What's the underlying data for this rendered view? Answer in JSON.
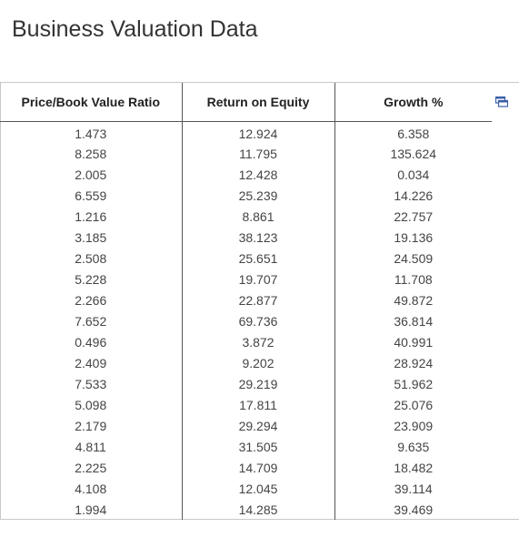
{
  "page": {
    "title": "Business Valuation Data"
  },
  "table": {
    "headers": [
      "Price/Book Value Ratio",
      "Return on Equity",
      "Growth %"
    ],
    "rows": [
      [
        "1.473",
        "12.924",
        "6.358"
      ],
      [
        "8.258",
        "11.795",
        "135.624"
      ],
      [
        "2.005",
        "12.428",
        "0.034"
      ],
      [
        "6.559",
        "25.239",
        "14.226"
      ],
      [
        "1.216",
        "8.861",
        "22.757"
      ],
      [
        "3.185",
        "38.123",
        "19.136"
      ],
      [
        "2.508",
        "25.651",
        "24.509"
      ],
      [
        "5.228",
        "19.707",
        "11.708"
      ],
      [
        "2.266",
        "22.877",
        "49.872"
      ],
      [
        "7.652",
        "69.736",
        "36.814"
      ],
      [
        "0.496",
        "3.872",
        "40.991"
      ],
      [
        "2.409",
        "9.202",
        "28.924"
      ],
      [
        "7.533",
        "29.219",
        "51.962"
      ],
      [
        "5.098",
        "17.811",
        "25.076"
      ],
      [
        "2.179",
        "29.294",
        "23.909"
      ],
      [
        "4.811",
        "31.505",
        "9.635"
      ],
      [
        "2.225",
        "14.709",
        "18.482"
      ],
      [
        "4.108",
        "12.045",
        "39.114"
      ],
      [
        "1.994",
        "14.285",
        "39.469"
      ]
    ]
  },
  "icons": {
    "copy": "copy-to-clipboard-icon"
  },
  "colors": {
    "icon_accent": "#3a5ea8",
    "text": "#333333"
  }
}
